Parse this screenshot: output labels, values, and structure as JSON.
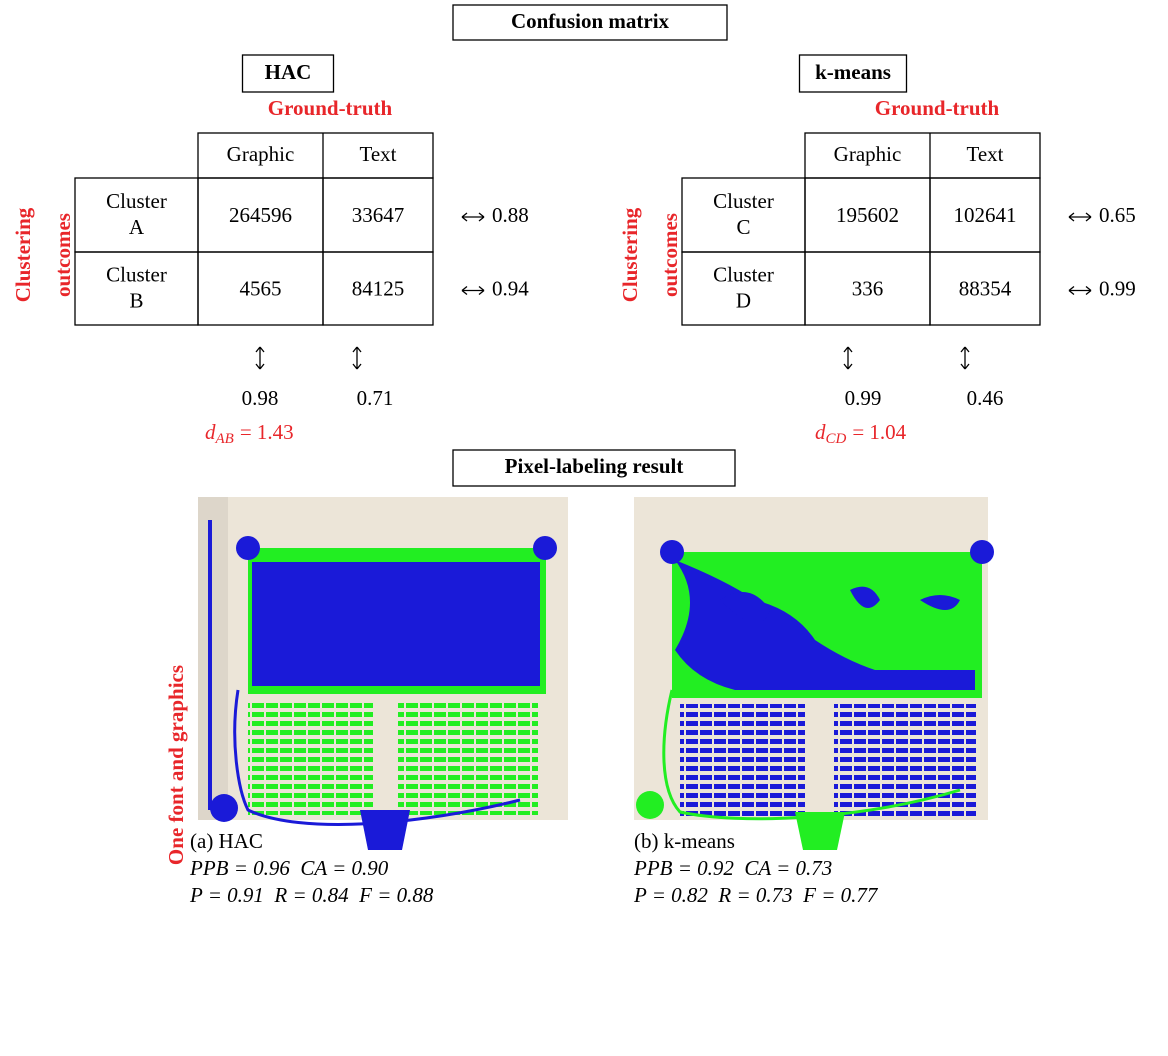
{
  "header": {
    "title": "Confusion matrix"
  },
  "panels": [
    {
      "method": "HAC",
      "ground_truth": "Ground-truth",
      "side_label": [
        "Clustering",
        "outcomes"
      ],
      "columns": [
        "Graphic",
        "Text"
      ],
      "rows": [
        {
          "label": [
            "Cluster",
            "A"
          ],
          "cells": [
            264596,
            33647
          ],
          "score": "0.88"
        },
        {
          "label": [
            "Cluster",
            "B"
          ],
          "cells": [
            4565,
            84125
          ],
          "score": "0.94"
        }
      ],
      "column_scores": [
        "0.98",
        "0.71"
      ],
      "distance": {
        "symbol": "d",
        "subscript": "AB",
        "equation": "= 1.43"
      }
    },
    {
      "method": "k-means",
      "ground_truth": "Ground-truth",
      "side_label": [
        "Clustering",
        "outcomes"
      ],
      "columns": [
        "Graphic",
        "Text"
      ],
      "rows": [
        {
          "label": [
            "Cluster",
            "C"
          ],
          "cells": [
            195602,
            102641
          ],
          "score": "0.65"
        },
        {
          "label": [
            "Cluster",
            "D"
          ],
          "cells": [
            336,
            88354
          ],
          "score": "0.99"
        }
      ],
      "column_scores": [
        "0.99",
        "0.46"
      ],
      "distance": {
        "symbol": "d",
        "subscript": "CD",
        "equation": "= 1.04"
      }
    }
  ],
  "result": {
    "title": "Pixel-labeling result",
    "side_label": "One font and graphics",
    "figures": [
      {
        "caption": "(a) HAC",
        "metrics": [
          "PPB = 0.96  CA = 0.90",
          "P = 0.91  R = 0.84  F = 0.88"
        ]
      },
      {
        "caption": "(b) k-means",
        "metrics": [
          "PPB = 0.92  CA = 0.73",
          "P = 0.82  R = 0.73  F = 0.77"
        ]
      }
    ]
  }
}
